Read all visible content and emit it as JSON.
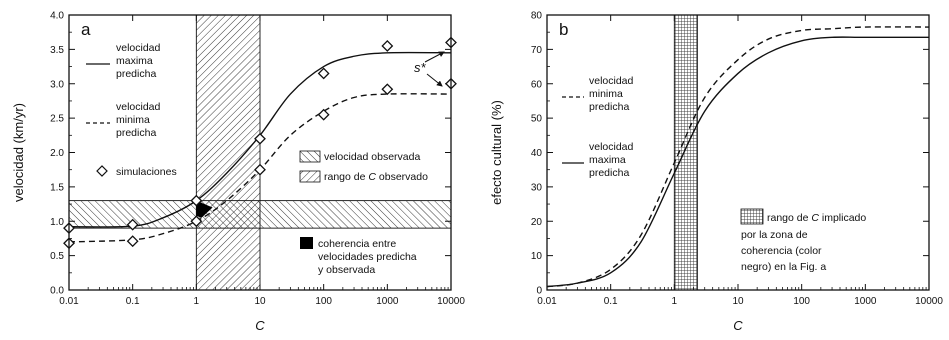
{
  "chart_data": [
    {
      "panel_label": "a",
      "type": "line",
      "xscale": "log",
      "xlabel": "C",
      "ylabel": "velocidad (km/yr)",
      "xlim": [
        0.01,
        10000
      ],
      "ylim": [
        0,
        4
      ],
      "x_ticks": [
        "0.01",
        "0.1",
        "1",
        "10",
        "100",
        "1000",
        "10000"
      ],
      "y_ticks": [
        "0.0",
        "0.5",
        "1.0",
        "1.5",
        "2.0",
        "2.5",
        "3.0",
        "3.5",
        "4.0"
      ],
      "series": [
        {
          "name": "velocidad maxima predicha",
          "style": "solid",
          "x": [
            0.01,
            0.1,
            0.3,
            1,
            3,
            10,
            30,
            100,
            300,
            1000,
            10000
          ],
          "values": [
            0.92,
            0.93,
            1.05,
            1.3,
            1.7,
            2.25,
            2.85,
            3.25,
            3.4,
            3.45,
            3.45
          ]
        },
        {
          "name": "velocidad minima predicha",
          "style": "dashed",
          "x": [
            0.01,
            0.1,
            0.3,
            1,
            3,
            10,
            30,
            100,
            300,
            1000,
            10000
          ],
          "values": [
            0.7,
            0.73,
            0.82,
            1.0,
            1.3,
            1.75,
            2.25,
            2.6,
            2.8,
            2.85,
            2.85
          ]
        },
        {
          "name": "simulaciones",
          "style": "markers",
          "points": [
            {
              "x": 0.01,
              "y": 0.9
            },
            {
              "x": 0.01,
              "y": 0.68
            },
            {
              "x": 0.1,
              "y": 0.95
            },
            {
              "x": 0.1,
              "y": 0.71
            },
            {
              "x": 1,
              "y": 1.3
            },
            {
              "x": 1,
              "y": 1.0
            },
            {
              "x": 10,
              "y": 2.2
            },
            {
              "x": 10,
              "y": 1.75
            },
            {
              "x": 100,
              "y": 3.15
            },
            {
              "x": 100,
              "y": 2.55
            },
            {
              "x": 1000,
              "y": 3.55
            },
            {
              "x": 1000,
              "y": 2.92
            },
            {
              "x": 10000,
              "y": 3.6
            },
            {
              "x": 10000,
              "y": 3.0
            }
          ]
        }
      ],
      "bands": {
        "velocidad_observada": {
          "y": [
            0.9,
            1.3
          ]
        },
        "rango_C_observado": {
          "x": [
            1,
            10
          ]
        }
      },
      "coherence_region": [
        [
          1,
          1.3
        ],
        [
          1.8,
          1.2
        ],
        [
          1.2,
          1.05
        ],
        [
          1,
          1.08
        ]
      ],
      "annotation": "s*",
      "legend": {
        "max": [
          "velocidad",
          "maxima",
          "predicha"
        ],
        "min": [
          "velocidad",
          "minima",
          "predicha"
        ],
        "sim": "simulaciones",
        "vel_obs": "velocidad observada",
        "rango_pre": "rango de ",
        "rango_c": "C",
        "rango_post": " observado",
        "coh": [
          "coherencia entre",
          "velocidades predicha",
          "y observada"
        ]
      },
      "colors": {
        "line": "#111111",
        "fill": "#000000"
      }
    },
    {
      "panel_label": "b",
      "type": "line",
      "xscale": "log",
      "xlabel": "C",
      "ylabel": "efecto cultural (%)",
      "xlim": [
        0.01,
        10000
      ],
      "ylim": [
        0,
        80
      ],
      "x_ticks": [
        "0.01",
        "0.1",
        "1",
        "10",
        "100",
        "1000",
        "10000"
      ],
      "y_ticks": [
        "0",
        "10",
        "20",
        "30",
        "40",
        "50",
        "60",
        "70",
        "80"
      ],
      "series": [
        {
          "name": "velocidad minima predicha",
          "style": "dashed",
          "x": [
            0.01,
            0.03,
            0.1,
            0.3,
            1,
            3,
            10,
            30,
            100,
            300,
            1000,
            10000
          ],
          "values": [
            1,
            2,
            6,
            16,
            37,
            56,
            67,
            73,
            75.5,
            76,
            76.5,
            76.5
          ]
        },
        {
          "name": "velocidad maxima predicha",
          "style": "solid",
          "x": [
            0.01,
            0.03,
            0.1,
            0.3,
            1,
            3,
            10,
            30,
            100,
            300,
            1000,
            10000
          ],
          "values": [
            1,
            2,
            5,
            14,
            34,
            52,
            63,
            69,
            72.5,
            73.5,
            73.5,
            73.5
          ]
        }
      ],
      "bands": {
        "rango_C_implicado": {
          "x": [
            1,
            2.3
          ]
        }
      },
      "legend": {
        "min": [
          "velocidad",
          "minima",
          "predicha"
        ],
        "max": [
          "velocidad",
          "maxima",
          "predicha"
        ],
        "rango_pre": "rango de ",
        "rango_c": "C",
        "rango_post": " implicado",
        "rango_rest": [
          "por la zona de",
          "coherencia (color",
          "negro) en la Fig. a"
        ]
      },
      "colors": {
        "line": "#111111"
      }
    }
  ]
}
